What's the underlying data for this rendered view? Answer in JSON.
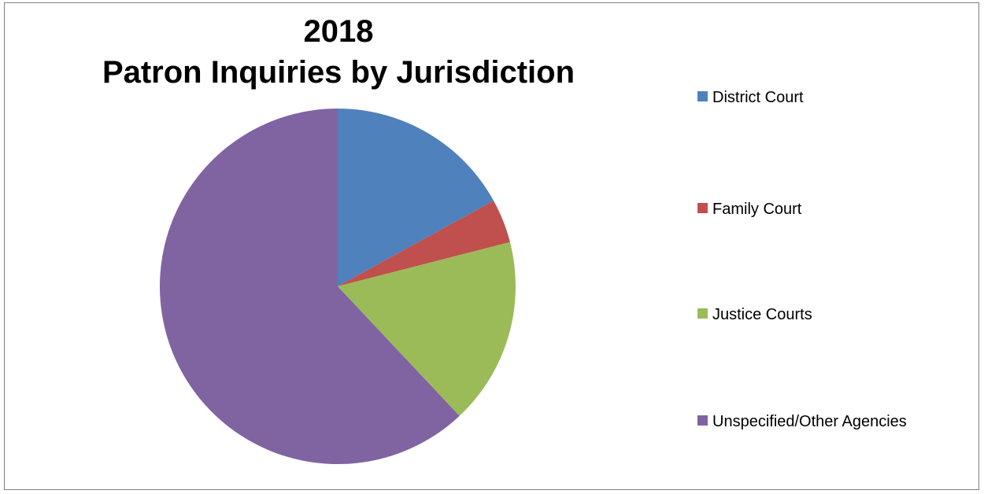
{
  "chart_data": {
    "type": "pie",
    "title_lines": [
      "2018",
      "Patron Inquiries by  Jurisdiction"
    ],
    "legend_position": "right",
    "slices": [
      {
        "label": "District Court",
        "value": 17,
        "color": "#4F81BD"
      },
      {
        "label": "Family Court",
        "value": 4,
        "color": "#C0504D"
      },
      {
        "label": "Justice Courts",
        "value": 17,
        "color": "#9BBB59"
      },
      {
        "label": "Unspecified/Other Agencies",
        "value": 62,
        "color": "#8064A2"
      }
    ]
  }
}
